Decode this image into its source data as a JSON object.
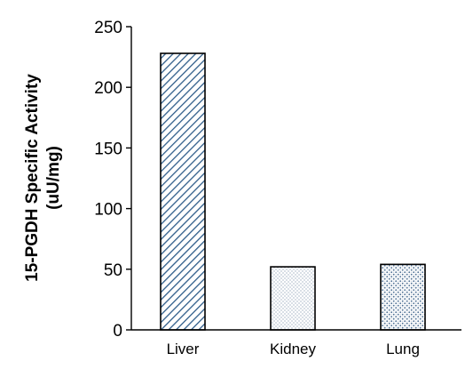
{
  "chart_data": {
    "type": "bar",
    "title": "",
    "xlabel": "",
    "ylabel": [
      "15-PGDH Specific Activity",
      "(uU/mg)"
    ],
    "categories": [
      "Liver",
      "Kidney",
      "Lung"
    ],
    "values": [
      228,
      52,
      54
    ],
    "bar_patterns": [
      "diagonal-stripes",
      "fine-dots",
      "crosshatch-dots"
    ],
    "pattern_colors": {
      "diagonal-stripes": "#2f5d8a",
      "fine-dots": "#7a8fa8",
      "crosshatch-dots": "#4d6f93",
      "outline": "#000000"
    },
    "ylim": [
      0,
      250
    ],
    "yticks": [
      0,
      50,
      100,
      150,
      200,
      250
    ],
    "grid": false,
    "legend": "none"
  }
}
